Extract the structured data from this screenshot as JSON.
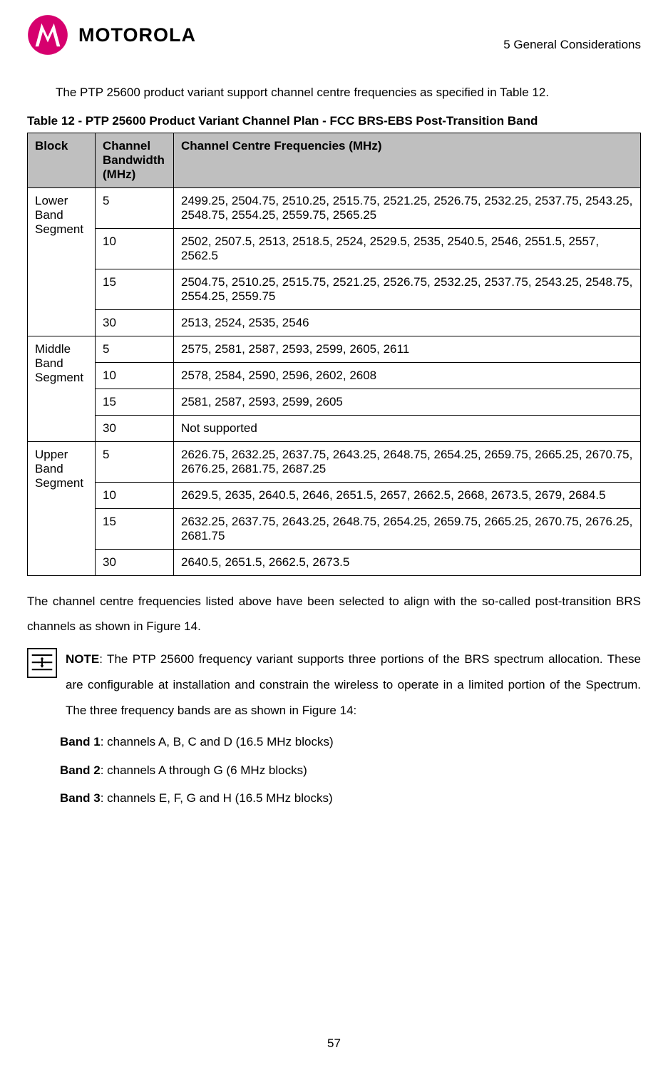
{
  "header": {
    "brand": "MOTOROLA",
    "section": "5 General Considerations"
  },
  "intro": "The PTP 25600 product variant support channel centre frequencies as specified in Table 12.",
  "table_caption": "Table 12 - PTP 25600 Product Variant Channel Plan - FCC BRS-EBS Post-Transition Band",
  "table": {
    "headers": {
      "block": "Block",
      "bandwidth": "Channel Bandwidth (MHz)",
      "freqs": "Channel Centre Frequencies (MHz)"
    },
    "rows": [
      {
        "block": "Lower Band Segment",
        "bw": "5",
        "freq": "2499.25, 2504.75, 2510.25, 2515.75, 2521.25, 2526.75, 2532.25, 2537.75, 2543.25, 2548.75, 2554.25, 2559.75, 2565.25",
        "rowspan": 4
      },
      {
        "bw": "10",
        "freq": "2502, 2507.5, 2513, 2518.5, 2524, 2529.5, 2535, 2540.5, 2546, 2551.5, 2557, 2562.5"
      },
      {
        "bw": "15",
        "freq": "2504.75, 2510.25, 2515.75, 2521.25, 2526.75, 2532.25, 2537.75, 2543.25, 2548.75, 2554.25, 2559.75"
      },
      {
        "bw": "30",
        "freq": "2513, 2524, 2535, 2546"
      },
      {
        "block": "Middle Band Segment",
        "bw": "5",
        "freq": "2575, 2581, 2587, 2593, 2599, 2605, 2611",
        "rowspan": 4
      },
      {
        "bw": "10",
        "freq": "2578, 2584, 2590, 2596, 2602, 2608"
      },
      {
        "bw": "15",
        "freq": "2581, 2587, 2593, 2599, 2605"
      },
      {
        "bw": "30",
        "freq": "Not supported"
      },
      {
        "block": "Upper Band Segment",
        "bw": "5",
        "freq": "2626.75, 2632.25, 2637.75, 2643.25, 2648.75, 2654.25, 2659.75, 2665.25, 2670.75, 2676.25, 2681.75, 2687.25",
        "rowspan": 4
      },
      {
        "bw": "10",
        "freq": "2629.5, 2635, 2640.5, 2646, 2651.5, 2657, 2662.5, 2668, 2673.5, 2679, 2684.5"
      },
      {
        "bw": "15",
        "freq": "2632.25, 2637.75, 2643.25, 2648.75, 2654.25, 2659.75, 2665.25, 2670.75, 2676.25, 2681.75"
      },
      {
        "bw": "30",
        "freq": "2640.5, 2651.5, 2662.5, 2673.5"
      }
    ]
  },
  "para_below": "The channel centre frequencies listed above have been selected to align with the so-called post-transition BRS channels as shown in Figure 14.",
  "note_label": "NOTE",
  "note_body": ": The PTP 25600 frequency variant supports three portions of the BRS spectrum allocation. These are configurable at installation and constrain the wireless to operate in a limited portion of the Spectrum. The three frequency bands are as shown in Figure 14:",
  "bands": [
    {
      "label": "Band 1",
      "text": ": channels A, B, C and D (16.5 MHz blocks)"
    },
    {
      "label": "Band 2",
      "text": ": channels A through G (6 MHz blocks)"
    },
    {
      "label": "Band 3",
      "text": ": channels E, F, G and H (16.5 MHz blocks)"
    }
  ],
  "page_number": "57",
  "colors": {
    "logo_pink": "#d6006e",
    "header_gray": "#bfbfbf"
  }
}
